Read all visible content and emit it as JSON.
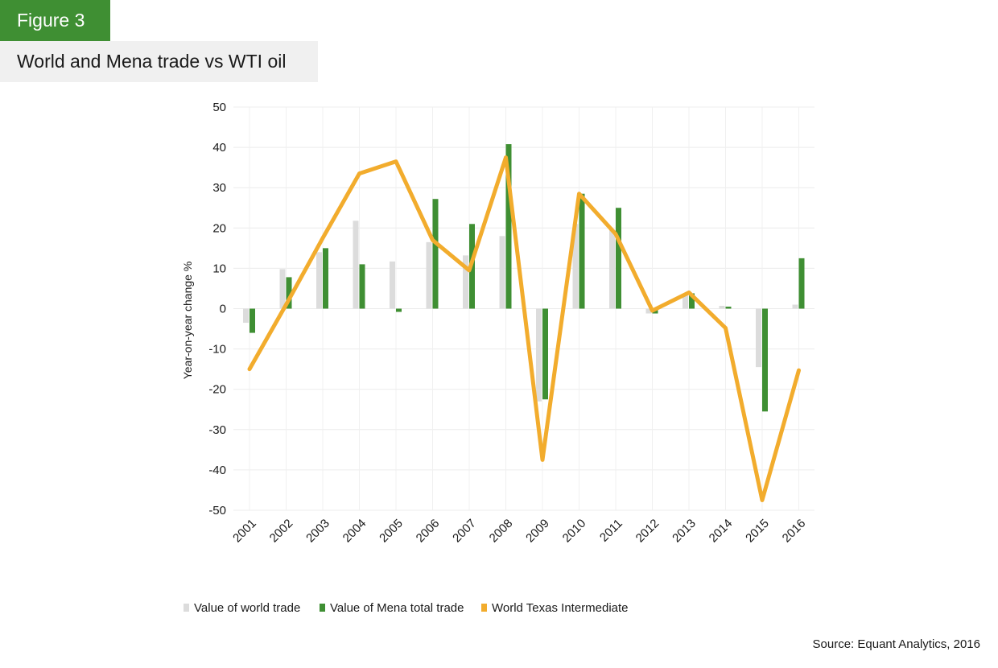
{
  "figure_label": "Figure 3",
  "figure_title": "World and Mena trade vs WTI oil",
  "source": "Source: Equant Analytics, 2016",
  "chart_data": {
    "type": "bar",
    "categories": [
      "2001",
      "2002",
      "2003",
      "2004",
      "2005",
      "2006",
      "2007",
      "2008",
      "2009",
      "2010",
      "2011",
      "2012",
      "2013",
      "2014",
      "2015",
      "2016"
    ],
    "ylabel": "Year-on-year change %",
    "ylim": [
      -50,
      50
    ],
    "yticks": [
      "50",
      "40",
      "30",
      "20",
      "10",
      "0",
      "-10",
      "-20",
      "-30",
      "-40",
      "-50"
    ],
    "grid": true,
    "legend_position": "bottom",
    "series": [
      {
        "name": "Value of world trade",
        "kind": "bar",
        "color": "#dcdcdc",
        "values": [
          -3.5,
          9.8,
          14,
          21.8,
          11.7,
          16.5,
          13.2,
          18,
          -23,
          21,
          19.5,
          -1.2,
          3.5,
          0.7,
          -14.5,
          1
        ]
      },
      {
        "name": "Value of Mena total trade",
        "kind": "bar",
        "color": "#3f8f33",
        "values": [
          -6,
          7.8,
          15,
          11,
          -0.8,
          27.2,
          21,
          40.8,
          -22.5,
          28.5,
          25,
          -1.2,
          3.8,
          0.5,
          -25.5,
          12.5
        ]
      },
      {
        "name": "World Texas Intermediate",
        "kind": "line",
        "color": "#f2ac2d",
        "values": [
          -15,
          1,
          17.5,
          33.5,
          36.5,
          17,
          9.5,
          37.5,
          -37.5,
          28.5,
          18.5,
          -0.5,
          4,
          -4.8,
          -47.5,
          -15.3
        ]
      }
    ]
  }
}
